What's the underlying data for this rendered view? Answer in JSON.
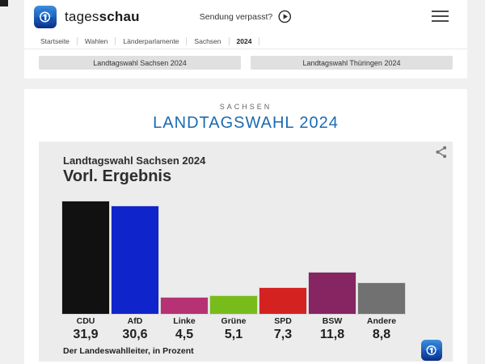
{
  "header": {
    "brand": {
      "name_regular": "tages",
      "name_bold": "schau"
    },
    "missed_show_label": "Sendung verpasst?"
  },
  "breadcrumb": {
    "items": [
      "Startseite",
      "Wahlen",
      "Länderparlamente",
      "Sachsen",
      "2024"
    ]
  },
  "tabs": [
    {
      "name": "sachsen",
      "label": "Landtagswahl Sachsen 2024"
    },
    {
      "name": "thueringen",
      "label": "Landtagswahl Thüringen 2024"
    }
  ],
  "main": {
    "kicker": "SACHSEN",
    "title": "LANDTAGSWAHL 2024",
    "title_color": "#1b6ab3"
  },
  "chart_data": {
    "type": "bar",
    "subtitle": "Landtagswahl Sachsen 2024",
    "title": "Vorl. Ergebnis",
    "categories": [
      "CDU",
      "AfD",
      "Linke",
      "Grüne",
      "SPD",
      "BSW",
      "Andere"
    ],
    "values": [
      31.9,
      30.6,
      4.5,
      5.1,
      7.3,
      11.8,
      8.8
    ],
    "value_labels": [
      "31,9",
      "30,6",
      "4,5",
      "5,1",
      "7,3",
      "11,8",
      "8,8"
    ],
    "colors": [
      "#111111",
      "#0f25cb",
      "#b73275",
      "#78bc1b",
      "#d42221",
      "#862562",
      "#717171"
    ],
    "ylim": [
      0,
      32
    ],
    "grid": false,
    "legend": false,
    "unit": "Prozent",
    "source": "Der Landeswahlleiter, in Prozent",
    "card_bg": "#ececec"
  }
}
